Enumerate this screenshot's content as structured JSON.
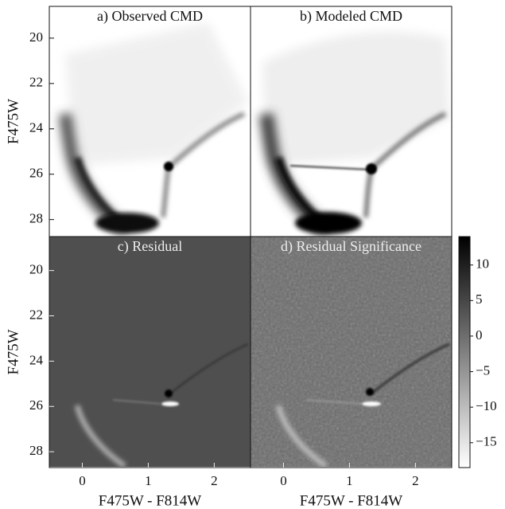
{
  "chart_data": [
    {
      "type": "heatmap",
      "title": "a) Observed CMD",
      "ylabel": "F475W",
      "xlim": [
        -0.5,
        2.55
      ],
      "ylim": [
        28.75,
        18.6
      ],
      "yticks": [
        20,
        22,
        24,
        26,
        28
      ]
    },
    {
      "type": "heatmap",
      "title": "b) Modeled CMD",
      "xlim": [
        -0.5,
        2.55
      ],
      "ylim": [
        28.75,
        18.6
      ]
    },
    {
      "type": "heatmap",
      "title": "c) Residual",
      "xlabel": "F475W - F814W",
      "ylabel": "F475W",
      "xlim": [
        -0.5,
        2.55
      ],
      "ylim": [
        28.7,
        18.5
      ],
      "xticks": [
        0,
        1,
        2
      ],
      "yticks": [
        20,
        22,
        24,
        26,
        28
      ]
    },
    {
      "type": "heatmap",
      "title": "d) Residual Significance",
      "xlabel": "F475W - F814W",
      "xlim": [
        -0.5,
        2.55
      ],
      "ylim": [
        28.7,
        18.5
      ],
      "xticks": [
        0,
        1,
        2
      ],
      "colorbar": {
        "lim": [
          -18.5,
          14
        ],
        "colors": [
          "#ffffff",
          "#000000"
        ],
        "ticks": [
          10,
          5,
          0,
          {
            "value": -5,
            "label": "−5"
          },
          {
            "value": -10,
            "label": "−10"
          },
          {
            "value": -15,
            "label": "−15"
          }
        ]
      }
    }
  ]
}
